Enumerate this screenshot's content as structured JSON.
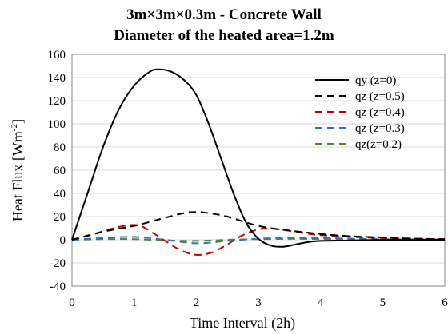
{
  "chart_data": {
    "type": "line",
    "title_line1": "3m×3m×0.3m - Concrete Wall",
    "title_line2": "Diameter of the heated area=1.2m",
    "xlabel": "Time Interval (2h)",
    "ylabel_main": "Heat Flux [Wm",
    "ylabel_sup": "-2",
    "ylabel_end": "]",
    "xlim": [
      0,
      6
    ],
    "ylim": [
      -40,
      160
    ],
    "xticks": [
      "0",
      "1",
      "2",
      "3",
      "4",
      "5",
      "6"
    ],
    "yticks": [
      "-40",
      "-20",
      "0",
      "20",
      "40",
      "60",
      "80",
      "100",
      "120",
      "140",
      "160"
    ],
    "grid": "horizontal",
    "legend_position": "upper-right inside plot",
    "series": [
      {
        "name": "qy (z=0)",
        "color": "#000000",
        "dash": "solid",
        "x": [
          0,
          0.25,
          0.5,
          0.75,
          1.0,
          1.25,
          1.4,
          1.6,
          1.8,
          2.0,
          2.2,
          2.4,
          2.6,
          2.8,
          3.0,
          3.2,
          3.4,
          3.6,
          3.8,
          4.0,
          4.5,
          5.0,
          5.5,
          6.0
        ],
        "y": [
          0,
          40,
          80,
          112,
          133,
          145,
          147,
          145,
          138,
          125,
          100,
          70,
          40,
          15,
          1,
          -5,
          -6,
          -4,
          -2,
          -1,
          -0.5,
          0,
          0,
          0
        ]
      },
      {
        "name": "qz (z=0.5)",
        "color": "#000000",
        "dash": "long-dash",
        "x": [
          0,
          0.5,
          1.0,
          1.5,
          1.8,
          2.0,
          2.2,
          2.5,
          3.0,
          3.5,
          4.0,
          4.5,
          5.0,
          5.5,
          6.0
        ],
        "y": [
          0,
          7,
          12,
          19,
          23,
          24,
          23,
          20,
          12,
          8,
          5,
          3,
          2,
          1,
          0.5
        ]
      },
      {
        "name": "qz (z=0.4)",
        "color": "#c00000",
        "dash": "long-dash",
        "x": [
          0,
          0.3,
          0.6,
          0.9,
          1.1,
          1.3,
          1.5,
          1.75,
          2.0,
          2.25,
          2.5,
          2.75,
          3.0,
          3.2,
          3.4,
          3.7,
          4.0,
          4.5,
          5.0,
          5.5,
          6.0
        ],
        "y": [
          0,
          4,
          9,
          12.5,
          12,
          6,
          -1,
          -9,
          -13,
          -11,
          -4,
          4,
          9,
          9.5,
          8.5,
          6,
          4,
          2.5,
          1.5,
          1,
          0.5
        ]
      },
      {
        "name": "qz (z=0.3)",
        "color": "#2e75b6",
        "dash": "long-dash",
        "x": [
          0,
          0.5,
          1.0,
          1.5,
          2.0,
          2.5,
          3.0,
          3.5,
          4.0,
          4.5,
          5.0,
          5.5,
          6.0
        ],
        "y": [
          0,
          1.5,
          2.5,
          0,
          -3,
          -1,
          1,
          1.5,
          1.5,
          1,
          0.5,
          0.3,
          0.2
        ]
      },
      {
        "name": "qz(z=0.2)",
        "color": "#548235",
        "dash": "long-dash",
        "x": [
          0,
          0.5,
          1.0,
          1.5,
          2.0,
          2.5,
          3.0,
          3.5,
          4.0,
          4.5,
          5.0,
          5.5,
          6.0
        ],
        "y": [
          0,
          0.5,
          0.5,
          -0.5,
          -1,
          0,
          0.5,
          0.8,
          0.7,
          0.5,
          0.3,
          0.2,
          0.1
        ]
      }
    ]
  }
}
